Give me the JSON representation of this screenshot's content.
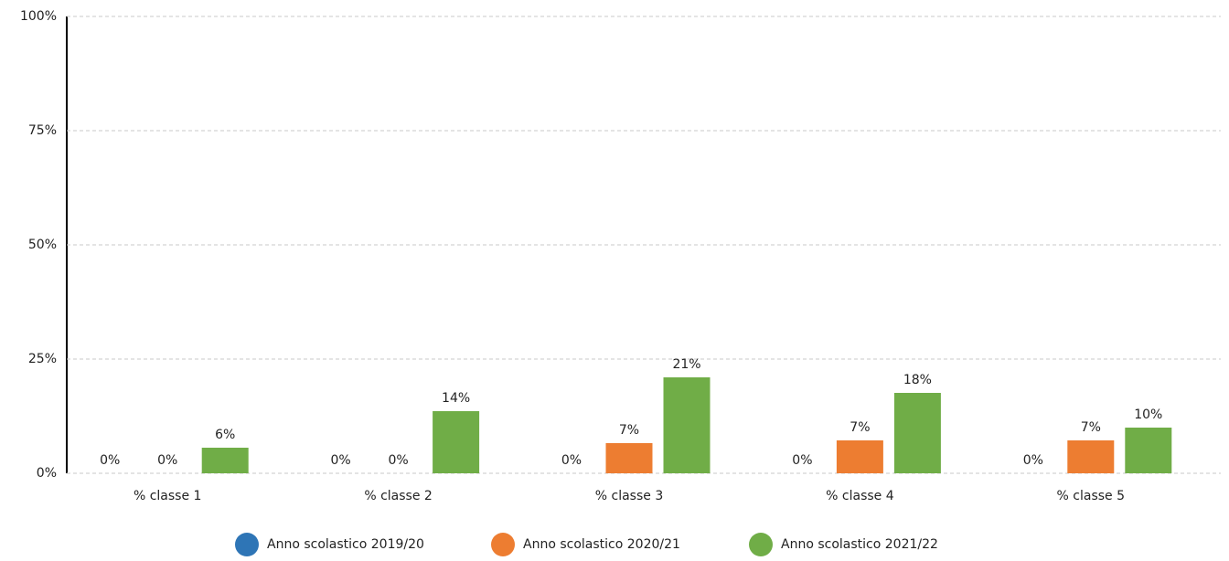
{
  "chart_data": {
    "type": "bar",
    "categories": [
      "% classe 1",
      "% classe 2",
      "% classe 3",
      "% classe 4",
      "% classe 5"
    ],
    "series": [
      {
        "name": "Anno scolastico 2019/20",
        "color": "#2e75b6",
        "values": [
          0,
          0,
          0,
          0,
          0
        ],
        "value_labels": [
          "0%",
          "0%",
          "0%",
          "0%",
          "0%"
        ]
      },
      {
        "name": "Anno scolastico 2020/21",
        "color": "#ed7d31",
        "values": [
          0,
          0,
          6.6,
          7.2,
          7.2
        ],
        "value_labels": [
          "0%",
          "0%",
          "7%",
          "7%",
          "7%"
        ]
      },
      {
        "name": "Anno scolastico 2021/22",
        "color": "#70ad47",
        "values": [
          5.6,
          13.6,
          21,
          17.6,
          10
        ],
        "value_labels": [
          "6%",
          "14%",
          "21%",
          "18%",
          "10%"
        ]
      }
    ],
    "ylim": [
      0,
      100
    ],
    "yticks": [
      {
        "value": 0,
        "label": "0%"
      },
      {
        "value": 25,
        "label": "25%"
      },
      {
        "value": 50,
        "label": "50%"
      },
      {
        "value": 75,
        "label": "75%"
      },
      {
        "value": 100,
        "label": "100%"
      }
    ],
    "grid": true,
    "legend": "bottom"
  }
}
